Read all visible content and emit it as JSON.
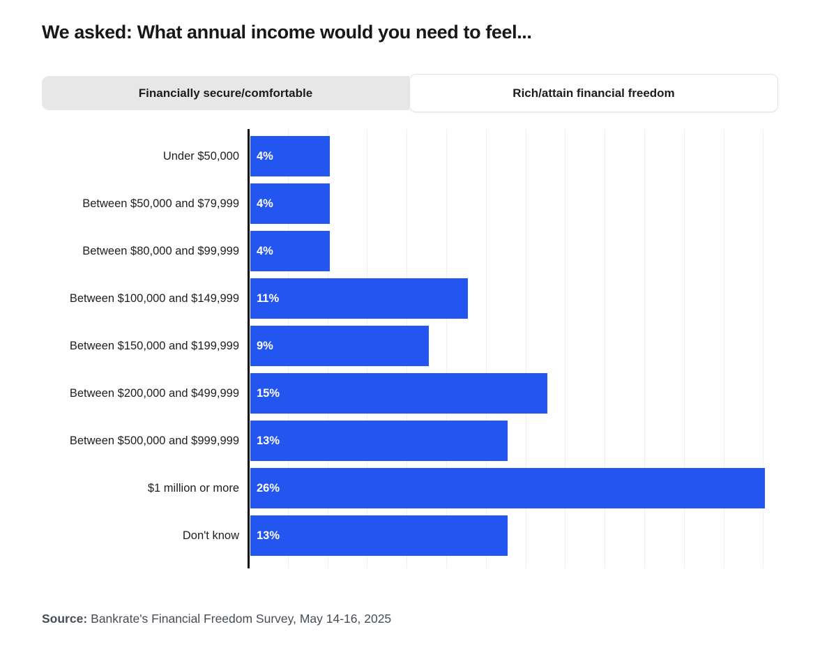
{
  "title": "We asked: What annual income would you need to feel...",
  "tabs": {
    "secure": {
      "label": "Financially secure/comfortable",
      "active": false
    },
    "rich": {
      "label": "Rich/attain financial freedom",
      "active": true
    }
  },
  "chart_data": {
    "type": "bar",
    "orientation": "horizontal",
    "series_name": "Rich/attain financial freedom",
    "categories": [
      "Under $50,000",
      "Between $50,000 and $79,999",
      "Between $80,000 and $99,999",
      "Between $100,000 and $149,999",
      "Between $150,000 and $199,999",
      "Between $200,000 and $499,999",
      "Between $500,000 and $999,999",
      "$1 million or more",
      "Don't know"
    ],
    "values": [
      4,
      4,
      4,
      11,
      9,
      15,
      13,
      26,
      13
    ],
    "value_labels": [
      "4%",
      "4%",
      "4%",
      "11%",
      "9%",
      "15%",
      "13%",
      "26%",
      "13%"
    ],
    "xlim": [
      0,
      26.75
    ],
    "gridline_interval": 2,
    "grid": true,
    "bar_color": "#2355f0",
    "axis_color": "#0e0e0e"
  },
  "source": {
    "prefix": "Source:",
    "text": "Bankrate's Financial Freedom Survey, May 14-16, 2025"
  }
}
